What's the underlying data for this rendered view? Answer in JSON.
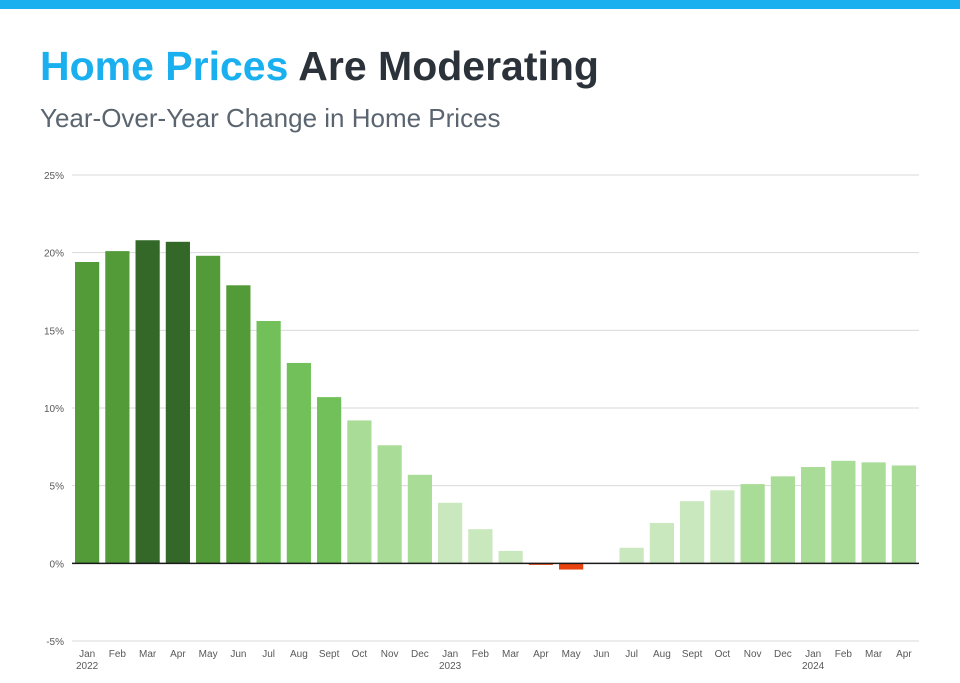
{
  "header": {
    "title_highlight": "Home Prices",
    "title_rest": "Are Moderating",
    "subtitle": "Year-Over-Year Change in Home Prices"
  },
  "colors": {
    "accent": "#1ab0ef",
    "title_dark": "#2b323a",
    "negative": "#e8420e"
  },
  "chart_data": {
    "type": "bar",
    "title": "Home Prices Are Moderating",
    "subtitle": "Year-Over-Year Change in Home Prices",
    "xlabel": "",
    "ylabel": "",
    "ylim": [
      -5,
      25
    ],
    "yticks": [
      -5,
      0,
      5,
      10,
      15,
      20,
      25
    ],
    "ytick_labels": [
      "-5%",
      "0%",
      "5%",
      "10%",
      "15%",
      "20%",
      "25%"
    ],
    "grid": true,
    "legend": "none",
    "categories": [
      "Jan",
      "Feb",
      "Mar",
      "Apr",
      "May",
      "Jun",
      "Jul",
      "Aug",
      "Sept",
      "Oct",
      "Nov",
      "Dec",
      "Jan",
      "Feb",
      "Mar",
      "Apr",
      "May",
      "Jun",
      "Jul",
      "Aug",
      "Sept",
      "Oct",
      "Nov",
      "Dec",
      "Jan",
      "Feb",
      "Mar",
      "Apr"
    ],
    "year_labels": [
      {
        "index": 0,
        "label": "2022"
      },
      {
        "index": 12,
        "label": "2023"
      },
      {
        "index": 24,
        "label": "2024"
      }
    ],
    "values": [
      19.4,
      20.1,
      20.8,
      20.7,
      19.8,
      17.9,
      15.6,
      12.9,
      10.7,
      9.2,
      7.6,
      5.7,
      3.9,
      2.2,
      0.8,
      -0.1,
      -0.4,
      0.0,
      1.0,
      2.6,
      4.0,
      4.7,
      5.1,
      5.6,
      6.2,
      6.6,
      6.5,
      6.3
    ],
    "bar_colors": [
      "#529b38",
      "#529b38",
      "#336828",
      "#336828",
      "#529b38",
      "#529b38",
      "#72c05a",
      "#72c05a",
      "#72c05a",
      "#a9dc97",
      "#a9dc97",
      "#a9dc97",
      "#c9e8bd",
      "#c9e8bd",
      "#c9e8bd",
      "#e8420e",
      "#e8420e",
      "#c9e8bd",
      "#c9e8bd",
      "#c9e8bd",
      "#c9e8bd",
      "#c9e8bd",
      "#a9dc97",
      "#a9dc97",
      "#a9dc97",
      "#a9dc97",
      "#a9dc97",
      "#a9dc97"
    ]
  }
}
